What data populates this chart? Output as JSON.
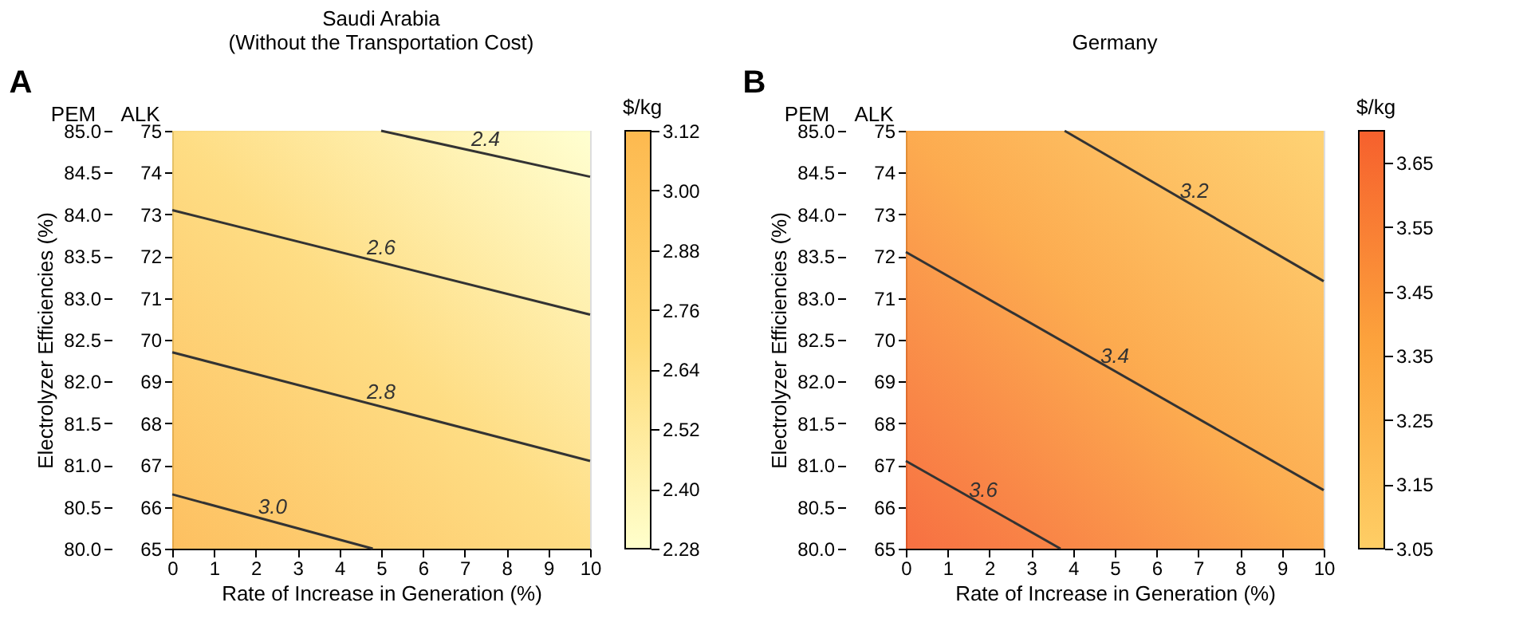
{
  "chart_data": [
    {
      "type": "line",
      "title": "Saudi Arabia",
      "subtitle": "(Without the Transportation Cost)",
      "xlabel": "Rate of Increase in Generation (%)",
      "y2label": "Electrolyzer Efficiencies (%)",
      "clabel": "$/kg",
      "annotations": [
        "A",
        "PEM",
        "ALK"
      ],
      "clim": [
        2.28,
        3.12
      ],
      "cticks": [
        {
          "value": 2.28,
          "label": "2.28"
        },
        {
          "value": 2.4,
          "label": "2.40"
        },
        {
          "value": 2.52,
          "label": "2.52"
        },
        {
          "value": 2.64,
          "label": "2.64"
        },
        {
          "value": 2.76,
          "label": "2.76"
        },
        {
          "value": 2.88,
          "label": "2.88"
        },
        {
          "value": 3.0,
          "label": "3.00"
        },
        {
          "value": 3.12,
          "label": "3.12"
        }
      ],
      "series": [
        {
          "name": "2.4",
          "color": "#333333",
          "x": [
            5,
            10
          ],
          "values": [
            75,
            73.9
          ]
        },
        {
          "name": "2.6",
          "color": "#333333",
          "x": [
            0,
            10
          ],
          "values": [
            73.1,
            70.6
          ]
        },
        {
          "name": "2.8",
          "color": "#333333",
          "x": [
            0,
            10
          ],
          "values": [
            69.7,
            67.1
          ]
        },
        {
          "name": "3.0",
          "color": "#333333",
          "x": [
            0,
            4.8
          ],
          "values": [
            66.3,
            65
          ]
        }
      ],
      "xlim": [
        0,
        10
      ],
      "xticks": [
        0,
        1,
        2,
        3,
        4,
        5,
        6,
        7,
        8,
        9,
        10
      ],
      "ylim": [
        65,
        75
      ],
      "yticks": [
        65,
        66,
        67,
        68,
        69,
        70,
        71,
        72,
        73,
        74,
        75
      ],
      "y2lim": [
        80,
        85
      ],
      "y2ticks": [
        {
          "value": 80,
          "label": "80.0"
        },
        80.5,
        {
          "value": 81,
          "label": "81.0"
        },
        81.5,
        {
          "value": 82,
          "label": "82.0"
        },
        82.5,
        {
          "value": 83,
          "label": "83.0"
        },
        83.5,
        {
          "value": 84,
          "label": "84.0"
        },
        84.5,
        {
          "value": 85,
          "label": "85.0"
        }
      ]
    },
    {
      "type": "line",
      "title": "Germany",
      "xlabel": "Rate of Increase in Generation (%)",
      "y2label": "Electrolyzer Efficiencies (%)",
      "clabel": "$/kg",
      "annotations": [
        "B",
        "PEM",
        "ALK"
      ],
      "clim": [
        3.05,
        3.7
      ],
      "cticks": [
        3.05,
        3.15,
        3.25,
        3.35,
        3.45,
        3.55,
        3.65
      ],
      "series": [
        {
          "name": "3.2",
          "color": "#333333",
          "x": [
            3.8,
            10
          ],
          "values": [
            75,
            71.4
          ]
        },
        {
          "name": "3.4",
          "color": "#333333",
          "x": [
            0,
            10
          ],
          "values": [
            72.1,
            66.4
          ]
        },
        {
          "name": "3.6",
          "color": "#333333",
          "x": [
            0,
            3.7
          ],
          "values": [
            67.1,
            65
          ]
        }
      ],
      "xlim": [
        0,
        10
      ],
      "xticks": [
        0,
        1,
        2,
        3,
        4,
        5,
        6,
        7,
        8,
        9,
        10
      ],
      "ylim": [
        65,
        75
      ],
      "yticks": [
        65,
        66,
        67,
        68,
        69,
        70,
        71,
        72,
        73,
        74,
        75
      ],
      "y2lim": [
        80,
        85
      ],
      "y2ticks": [
        {
          "value": 80,
          "label": "80.0"
        },
        80.5,
        {
          "value": 81,
          "label": "81.0"
        },
        81.5,
        {
          "value": 82,
          "label": "82.0"
        },
        82.5,
        {
          "value": 83,
          "label": "83.0"
        },
        83.5,
        {
          "value": 84,
          "label": "84.0"
        },
        84.5,
        {
          "value": 85,
          "label": "85.0"
        }
      ]
    }
  ]
}
